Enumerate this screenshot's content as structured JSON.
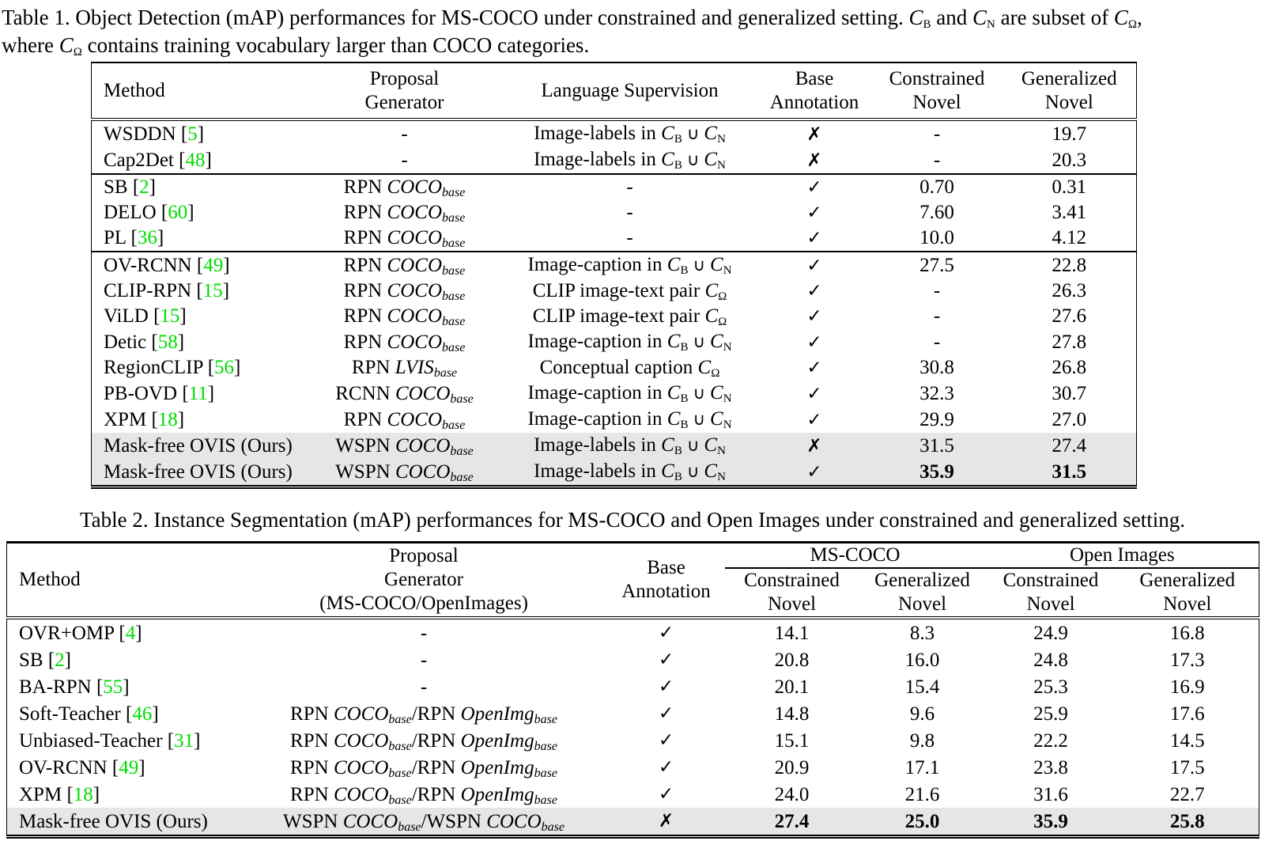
{
  "icons": {
    "check": "✓",
    "cross": "✗",
    "union": "∪",
    "set_letter": "C",
    "dash": "-"
  },
  "colors": {
    "citation_green": "#00dd00",
    "highlight_gray": "#e6e6e6",
    "text": "#000000"
  },
  "table1": {
    "caption_tokens": [
      {
        "t": "Table 1. Object Detection (mAP) performances for MS-COCO under constrained and generalized setting. "
      },
      {
        "set": "B"
      },
      {
        "t": " and "
      },
      {
        "set": "N"
      },
      {
        "t": " are subset of "
      },
      {
        "set": "Ω"
      },
      {
        "t": ","
      },
      {
        "br": true
      },
      {
        "t": "where "
      },
      {
        "set": "Ω"
      },
      {
        "t": " contains training vocabulary larger than COCO categories."
      }
    ],
    "headers": [
      "Method",
      "Proposal\nGenerator",
      "Language Supervision",
      "Base\nAnnotation",
      "Constrained\nNovel",
      "Generalized\nNovel"
    ],
    "rows": [
      {
        "method": [
          {
            "t": "WSDDN "
          },
          {
            "cite": "5"
          }
        ],
        "proposal": [
          {
            "t": "-"
          }
        ],
        "supervision": [
          {
            "t": "Image-labels in "
          },
          {
            "set": "B"
          },
          {
            "cup": true
          },
          {
            "set": "N"
          }
        ],
        "base": "cross",
        "constrained": "-",
        "generalized": "19.7",
        "sep": false,
        "highlight": false,
        "bold_vals": false
      },
      {
        "method": [
          {
            "t": "Cap2Det "
          },
          {
            "cite": "48"
          }
        ],
        "proposal": [
          {
            "t": "-"
          }
        ],
        "supervision": [
          {
            "t": "Image-labels in "
          },
          {
            "set": "B"
          },
          {
            "cup": true
          },
          {
            "set": "N"
          }
        ],
        "base": "cross",
        "constrained": "-",
        "generalized": "20.3",
        "sep": true,
        "highlight": false,
        "bold_vals": false
      },
      {
        "method": [
          {
            "t": "SB "
          },
          {
            "cite": "2"
          }
        ],
        "proposal": [
          {
            "t": "RPN "
          },
          {
            "m": "COCO",
            "sub": "base"
          }
        ],
        "supervision": [
          {
            "t": "-"
          }
        ],
        "base": "check",
        "constrained": "0.70",
        "generalized": "0.31",
        "sep": false,
        "highlight": false,
        "bold_vals": false
      },
      {
        "method": [
          {
            "t": "DELO "
          },
          {
            "cite": "60"
          }
        ],
        "proposal": [
          {
            "t": "RPN "
          },
          {
            "m": "COCO",
            "sub": "base"
          }
        ],
        "supervision": [
          {
            "t": "-"
          }
        ],
        "base": "check",
        "constrained": "7.60",
        "generalized": "3.41",
        "sep": false,
        "highlight": false,
        "bold_vals": false
      },
      {
        "method": [
          {
            "t": "PL "
          },
          {
            "cite": "36"
          }
        ],
        "proposal": [
          {
            "t": "RPN "
          },
          {
            "m": "COCO",
            "sub": "base"
          }
        ],
        "supervision": [
          {
            "t": "-"
          }
        ],
        "base": "check",
        "constrained": "10.0",
        "generalized": "4.12",
        "sep": true,
        "highlight": false,
        "bold_vals": false
      },
      {
        "method": [
          {
            "t": "OV-RCNN "
          },
          {
            "cite": "49"
          }
        ],
        "proposal": [
          {
            "t": "RPN "
          },
          {
            "m": "COCO",
            "sub": "base"
          }
        ],
        "supervision": [
          {
            "t": "Image-caption in "
          },
          {
            "set": "B"
          },
          {
            "cup": true
          },
          {
            "set": "N"
          }
        ],
        "base": "check",
        "constrained": "27.5",
        "generalized": "22.8",
        "sep": false,
        "highlight": false,
        "bold_vals": false
      },
      {
        "method": [
          {
            "t": "CLIP-RPN "
          },
          {
            "cite": "15"
          }
        ],
        "proposal": [
          {
            "t": "RPN "
          },
          {
            "m": "COCO",
            "sub": "base"
          }
        ],
        "supervision": [
          {
            "t": "CLIP image-text pair "
          },
          {
            "set": "Ω"
          }
        ],
        "base": "check",
        "constrained": "-",
        "generalized": "26.3",
        "sep": false,
        "highlight": false,
        "bold_vals": false
      },
      {
        "method": [
          {
            "t": "ViLD "
          },
          {
            "cite": "15"
          }
        ],
        "proposal": [
          {
            "t": "RPN "
          },
          {
            "m": "COCO",
            "sub": "base"
          }
        ],
        "supervision": [
          {
            "t": "CLIP image-text pair "
          },
          {
            "set": "Ω"
          }
        ],
        "base": "check",
        "constrained": "-",
        "generalized": "27.6",
        "sep": false,
        "highlight": false,
        "bold_vals": false
      },
      {
        "method": [
          {
            "t": "Detic "
          },
          {
            "cite": "58"
          }
        ],
        "proposal": [
          {
            "t": "RPN "
          },
          {
            "m": "COCO",
            "sub": "base"
          }
        ],
        "supervision": [
          {
            "t": "Image-caption in "
          },
          {
            "set": "B"
          },
          {
            "cup": true
          },
          {
            "set": "N"
          }
        ],
        "base": "check",
        "constrained": "-",
        "generalized": "27.8",
        "sep": false,
        "highlight": false,
        "bold_vals": false
      },
      {
        "method": [
          {
            "t": "RegionCLIP "
          },
          {
            "cite": "56"
          }
        ],
        "proposal": [
          {
            "t": "RPN "
          },
          {
            "m": "LVIS",
            "sub": "base"
          }
        ],
        "supervision": [
          {
            "t": "Conceptual caption "
          },
          {
            "set": "Ω"
          }
        ],
        "base": "check",
        "constrained": "30.8",
        "generalized": "26.8",
        "sep": false,
        "highlight": false,
        "bold_vals": false
      },
      {
        "method": [
          {
            "t": "PB-OVD "
          },
          {
            "cite": "11"
          }
        ],
        "proposal": [
          {
            "t": "RCNN "
          },
          {
            "m": "COCO",
            "sub": "base"
          }
        ],
        "supervision": [
          {
            "t": "Image-caption in "
          },
          {
            "set": "B"
          },
          {
            "cup": true
          },
          {
            "set": "N"
          }
        ],
        "base": "check",
        "constrained": "32.3",
        "generalized": "30.7",
        "sep": false,
        "highlight": false,
        "bold_vals": false
      },
      {
        "method": [
          {
            "t": "XPM "
          },
          {
            "cite": "18"
          }
        ],
        "proposal": [
          {
            "t": "RPN "
          },
          {
            "m": "COCO",
            "sub": "base"
          }
        ],
        "supervision": [
          {
            "t": "Image-caption in "
          },
          {
            "set": "B"
          },
          {
            "cup": true
          },
          {
            "set": "N"
          }
        ],
        "base": "check",
        "constrained": "29.9",
        "generalized": "27.0",
        "sep": false,
        "highlight": false,
        "bold_vals": false
      },
      {
        "method": [
          {
            "t": "Mask-free OVIS (Ours)"
          }
        ],
        "proposal": [
          {
            "t": "WSPN "
          },
          {
            "m": "COCO",
            "sub": "base"
          }
        ],
        "supervision": [
          {
            "t": "Image-labels in "
          },
          {
            "set": "B"
          },
          {
            "cup": true
          },
          {
            "set": "N"
          }
        ],
        "base": "cross",
        "constrained": "31.5",
        "generalized": "27.4",
        "sep": false,
        "highlight": true,
        "bold_vals": false
      },
      {
        "method": [
          {
            "t": "Mask-free OVIS (Ours)"
          }
        ],
        "proposal": [
          {
            "t": "WSPN "
          },
          {
            "m": "COCO",
            "sub": "base"
          }
        ],
        "supervision": [
          {
            "t": "Image-labels in "
          },
          {
            "set": "B"
          },
          {
            "cup": true
          },
          {
            "set": "N"
          }
        ],
        "base": "check",
        "constrained": "35.9",
        "generalized": "31.5",
        "sep": false,
        "highlight": true,
        "bold_vals": true
      }
    ]
  },
  "table2": {
    "caption": "Table 2. Instance Segmentation (mAP) performances for MS-COCO and Open Images under constrained and generalized setting.",
    "headers_left": [
      "Method",
      "Proposal\nGenerator\n(MS-COCO/OpenImages)",
      "Base\nAnnotation"
    ],
    "groups": [
      {
        "label": "MS-COCO"
      },
      {
        "label": "Open Images"
      }
    ],
    "subheaders": [
      "Constrained\nNovel",
      "Generalized\nNovel",
      "Constrained\nNovel",
      "Generalized\nNovel"
    ],
    "rows": [
      {
        "method": [
          {
            "t": "OVR+OMP "
          },
          {
            "cite": "4"
          }
        ],
        "proposal": [
          {
            "t": "-"
          }
        ],
        "base": "check",
        "values": [
          "14.1",
          "8.3",
          "24.9",
          "16.8"
        ],
        "highlight": false,
        "bold_vals": false
      },
      {
        "method": [
          {
            "t": "SB "
          },
          {
            "cite": "2"
          }
        ],
        "proposal": [
          {
            "t": "-"
          }
        ],
        "base": "check",
        "values": [
          "20.8",
          "16.0",
          "24.8",
          "17.3"
        ],
        "highlight": false,
        "bold_vals": false
      },
      {
        "method": [
          {
            "t": "BA-RPN "
          },
          {
            "cite": "55"
          }
        ],
        "proposal": [
          {
            "t": "-"
          }
        ],
        "base": "check",
        "values": [
          "20.1",
          "15.4",
          "25.3",
          "16.9"
        ],
        "highlight": false,
        "bold_vals": false
      },
      {
        "method": [
          {
            "t": "Soft-Teacher "
          },
          {
            "cite": "46"
          }
        ],
        "proposal": [
          {
            "t": "RPN "
          },
          {
            "m": "COCO",
            "sub": "base"
          },
          {
            "t": "/RPN "
          },
          {
            "m": "OpenImg",
            "sub": "base"
          }
        ],
        "base": "check",
        "values": [
          "14.8",
          "9.6",
          "25.9",
          "17.6"
        ],
        "highlight": false,
        "bold_vals": false
      },
      {
        "method": [
          {
            "t": "Unbiased-Teacher "
          },
          {
            "cite": "31"
          }
        ],
        "proposal": [
          {
            "t": "RPN "
          },
          {
            "m": "COCO",
            "sub": "base"
          },
          {
            "t": "/RPN "
          },
          {
            "m": "OpenImg",
            "sub": "base"
          }
        ],
        "base": "check",
        "values": [
          "15.1",
          "9.8",
          "22.2",
          "14.5"
        ],
        "highlight": false,
        "bold_vals": false
      },
      {
        "method": [
          {
            "t": "OV-RCNN "
          },
          {
            "cite": "49"
          }
        ],
        "proposal": [
          {
            "t": "RPN "
          },
          {
            "m": "COCO",
            "sub": "base"
          },
          {
            "t": "/RPN "
          },
          {
            "m": "OpenImg",
            "sub": "base"
          }
        ],
        "base": "check",
        "values": [
          "20.9",
          "17.1",
          "23.8",
          "17.5"
        ],
        "highlight": false,
        "bold_vals": false
      },
      {
        "method": [
          {
            "t": "XPM "
          },
          {
            "cite": "18"
          }
        ],
        "proposal": [
          {
            "t": "RPN "
          },
          {
            "m": "COCO",
            "sub": "base"
          },
          {
            "t": "/RPN "
          },
          {
            "m": "OpenImg",
            "sub": "base"
          }
        ],
        "base": "check",
        "values": [
          "24.0",
          "21.6",
          "31.6",
          "22.7"
        ],
        "highlight": false,
        "bold_vals": false
      },
      {
        "method": [
          {
            "t": "Mask-free OVIS (Ours)"
          }
        ],
        "proposal": [
          {
            "t": "WSPN "
          },
          {
            "m": "COCO",
            "sub": "base"
          },
          {
            "t": "/WSPN "
          },
          {
            "m": "COCO",
            "sub": "base"
          }
        ],
        "base": "cross",
        "values": [
          "27.4",
          "25.0",
          "35.9",
          "25.8"
        ],
        "highlight": true,
        "bold_vals": true
      }
    ]
  }
}
